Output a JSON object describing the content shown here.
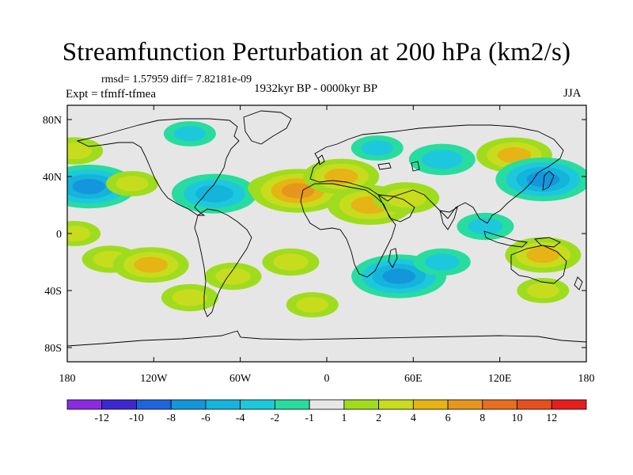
{
  "title": "Streamfunction Perturbation at 200 hPa (km2/s)",
  "stats": {
    "rmsd_label": "rmsd= 1.57959",
    "diff_label": "diff= 7.82181e-09"
  },
  "experiment": "Expt = tfmff-tfmea",
  "period": "1932kyr BP - 0000kyr BP",
  "season": "JJA",
  "chart_data": {
    "type": "heatmap",
    "title": "Streamfunction Perturbation at 200 hPa (km2/s)",
    "variable": "streamfunction perturbation",
    "units": "km2/s",
    "pressure_level_hPa": 200,
    "xlim": [
      -180,
      180
    ],
    "ylim": [
      -90,
      90
    ],
    "lon_ticks": [
      {
        "value": -180,
        "label": "180"
      },
      {
        "value": -120,
        "label": "120W"
      },
      {
        "value": -60,
        "label": "60W"
      },
      {
        "value": 0,
        "label": "0"
      },
      {
        "value": 60,
        "label": "60E"
      },
      {
        "value": 120,
        "label": "120E"
      },
      {
        "value": 180,
        "label": "180"
      }
    ],
    "lat_ticks": [
      {
        "value": 80,
        "label": "80N"
      },
      {
        "value": 40,
        "label": "40N"
      },
      {
        "value": 0,
        "label": "0"
      },
      {
        "value": -40,
        "label": "40S"
      },
      {
        "value": -80,
        "label": "80S"
      }
    ],
    "colorbar": {
      "levels": [
        -12,
        -10,
        -8,
        -6,
        -4,
        -2,
        -1,
        1,
        2,
        4,
        6,
        8,
        10,
        12
      ],
      "labels": [
        "-12",
        "-10",
        "-8",
        "-6",
        "-4",
        "-2",
        "-1",
        "1",
        "2",
        "4",
        "6",
        "8",
        "10",
        "12"
      ],
      "colors": [
        "#8a2be2",
        "#3c28d2",
        "#1e64dc",
        "#1496dc",
        "#14b4dc",
        "#1ec8dc",
        "#28dca0",
        "#e6e6e6",
        "#a0dc1e",
        "#c8dc1e",
        "#e6b414",
        "#e6961e",
        "#e66e1e",
        "#e6501e",
        "#e61e1e"
      ]
    },
    "features": [
      {
        "lon": -175,
        "lat": 58,
        "value": 2
      },
      {
        "lon": -175,
        "lat": 35,
        "value": -2
      },
      {
        "lon": -165,
        "lat": 33,
        "value": -6
      },
      {
        "lon": -135,
        "lat": 35,
        "value": 1.5
      },
      {
        "lon": -95,
        "lat": 70,
        "value": -1.5
      },
      {
        "lon": -85,
        "lat": 30,
        "value": -2
      },
      {
        "lon": -78,
        "lat": 28,
        "value": -5
      },
      {
        "lon": -150,
        "lat": -18,
        "value": 2
      },
      {
        "lon": -122,
        "lat": -22,
        "value": 4
      },
      {
        "lon": -95,
        "lat": -45,
        "value": 2
      },
      {
        "lon": -175,
        "lat": 0,
        "value": 1.5
      },
      {
        "lon": -35,
        "lat": 32,
        "value": 2
      },
      {
        "lon": -20,
        "lat": 30,
        "value": 6
      },
      {
        "lon": 10,
        "lat": 40,
        "value": 4
      },
      {
        "lon": 30,
        "lat": 20,
        "value": 5
      },
      {
        "lon": 55,
        "lat": 25,
        "value": 3
      },
      {
        "lon": 35,
        "lat": 60,
        "value": -1.5
      },
      {
        "lon": 80,
        "lat": 52,
        "value": -3
      },
      {
        "lon": -25,
        "lat": -20,
        "value": 2
      },
      {
        "lon": 50,
        "lat": -30,
        "value": -6
      },
      {
        "lon": 80,
        "lat": -20,
        "value": -2
      },
      {
        "lon": -10,
        "lat": -50,
        "value": 1.5
      },
      {
        "lon": 130,
        "lat": 55,
        "value": 4
      },
      {
        "lon": 150,
        "lat": 38,
        "value": -6
      },
      {
        "lon": 110,
        "lat": 5,
        "value": -2
      },
      {
        "lon": 150,
        "lat": -15,
        "value": 4
      },
      {
        "lon": 150,
        "lat": -40,
        "value": 1.5
      },
      {
        "lon": -65,
        "lat": -30,
        "value": 2
      }
    ]
  }
}
